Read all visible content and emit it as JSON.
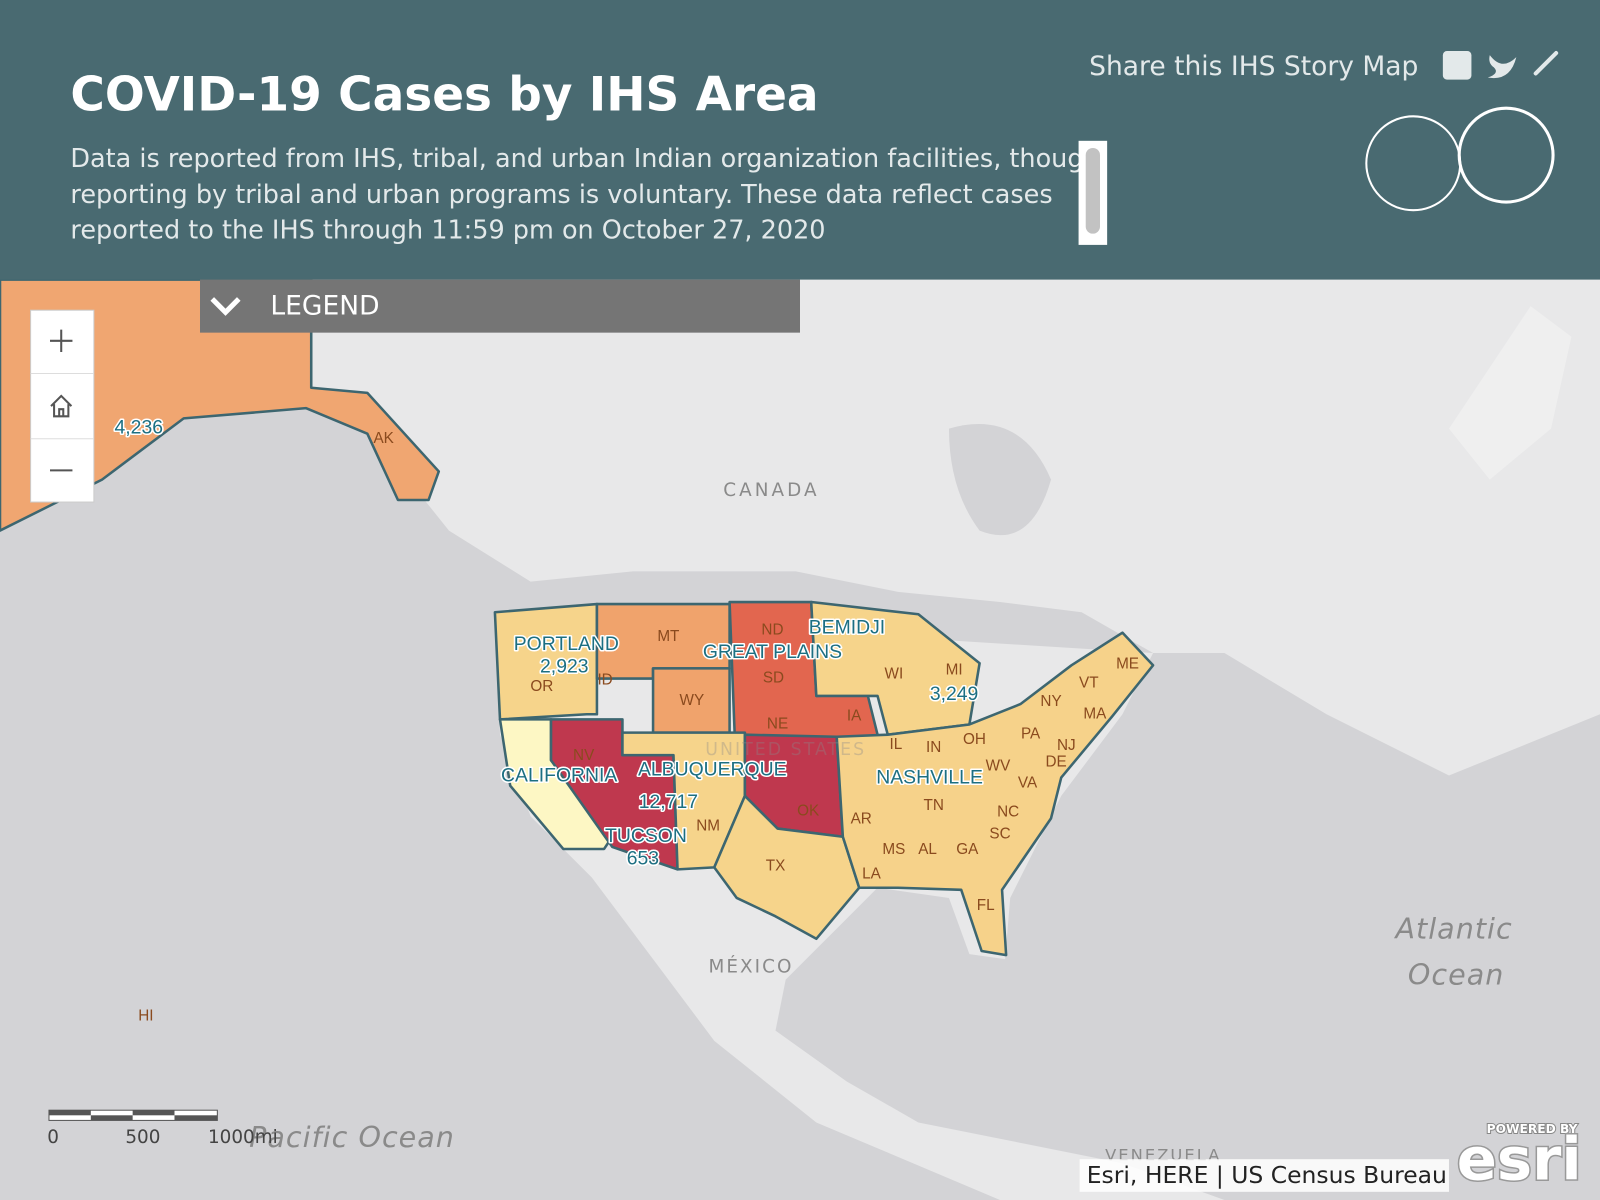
{
  "header": {
    "title": "COVID-19 Cases by IHS Area",
    "description": [
      "Data is reported from IHS, tribal, and urban Indian organization facilities, though",
      "reporting by tribal and urban programs is voluntary. These data reflect cases",
      "reported to the IHS through 11:59 pm on October 27, 2020"
    ],
    "share_text": "Share this IHS Story Map"
  },
  "legend": {
    "title": "LEGEND"
  },
  "map": {
    "area_labels": [
      "PORTLAND",
      "CALIFORNIA",
      "ALBUQUERQUE",
      "TUCSON",
      "GREAT PLAINS",
      "BEMIDJI",
      "NASHVILLE"
    ],
    "case_labels": [
      "4,236",
      "2,923",
      "12,717",
      "653",
      "3,249"
    ],
    "state_labels": [
      "AK",
      "OR",
      "ID",
      "MT",
      "WY",
      "ND",
      "SD",
      "NE",
      "IA",
      "WI",
      "MI",
      "NV",
      "NM",
      "TX",
      "OK",
      "IL",
      "IN",
      "OH",
      "PA",
      "NY",
      "VT",
      "ME",
      "MA",
      "NJ",
      "DE",
      "WV",
      "VA",
      "TN",
      "NC",
      "SC",
      "AR",
      "MS",
      "AL",
      "GA",
      "LA",
      "FL",
      "HI"
    ],
    "place_labels": [
      "CANADA",
      "UNITED STATES",
      "MÉXICO",
      "Atlantic",
      "Ocean",
      "Pacific Ocean",
      "VENEZUELA"
    ]
  },
  "scale_bar": {
    "labels": [
      "0",
      "500",
      "1000mi"
    ]
  },
  "attribution": "Esri, HERE | US Census Bureau",
  "esri_logo": {
    "powered": "POWERED BY",
    "brand": "esri"
  }
}
